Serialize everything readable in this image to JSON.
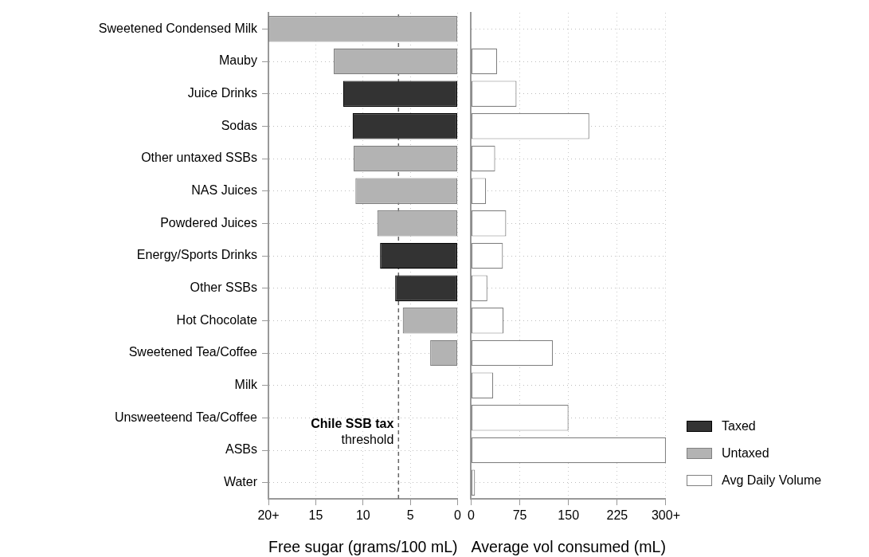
{
  "chart_data": [
    {
      "type": "bar",
      "orientation": "horizontal",
      "stacked": true,
      "xlabel": "Free sugar (grams/100 mL)",
      "categories": [
        "Sweetened Condensed Milk",
        "Mauby",
        "Juice Drinks",
        "Sodas",
        "Other untaxed SSBs",
        "NAS Juices",
        "Powdered Juices",
        "Energy/Sports Drinks",
        "Other SSBs",
        "Hot Chocolate",
        "Sweetened Tea/Coffee",
        "Milk",
        "Unsweeteend Tea/Coffee",
        "ASBs",
        "Water"
      ],
      "series": [
        {
          "name": "Taxed",
          "color": "#333333",
          "values": [
            null,
            null,
            12.1,
            11.1,
            null,
            null,
            null,
            8.2,
            6.6,
            null,
            null,
            null,
            null,
            null,
            null
          ]
        },
        {
          "name": "Untaxed",
          "color": "#b3b3b3",
          "values": [
            20,
            13.1,
            null,
            null,
            11.0,
            10.8,
            8.5,
            null,
            null,
            5.8,
            2.9,
            null,
            null,
            null,
            null
          ]
        }
      ],
      "xlim": [
        20,
        0
      ],
      "xticks": [
        {
          "value": 20,
          "label": "20+"
        },
        15,
        10,
        5,
        0
      ],
      "ref_lines": [
        {
          "axis": "x",
          "value": 6.25,
          "label": "Chile SSB tax threshold",
          "line_style": "dashed",
          "color": "#666666"
        }
      ],
      "grid": true,
      "legend": "right"
    },
    {
      "type": "bar",
      "orientation": "horizontal",
      "xlabel": "Average vol consumed (mL)",
      "categories": [
        null,
        null,
        null,
        null,
        null,
        null,
        null,
        null,
        null,
        null,
        null,
        null,
        null,
        null,
        null
      ],
      "series": [
        {
          "name": "Avg Daily Volume",
          "color": "#ffffff",
          "values": [
            null,
            40,
            70,
            182,
            37,
            23,
            54,
            49,
            25,
            50,
            126,
            34,
            150,
            300,
            6
          ]
        }
      ],
      "xlim": [
        0,
        300
      ],
      "xticks": [
        0,
        75,
        150,
        225,
        {
          "value": 300,
          "label": "300+"
        }
      ],
      "tick_labels": "x",
      "grid": true,
      "legend": "right"
    }
  ]
}
